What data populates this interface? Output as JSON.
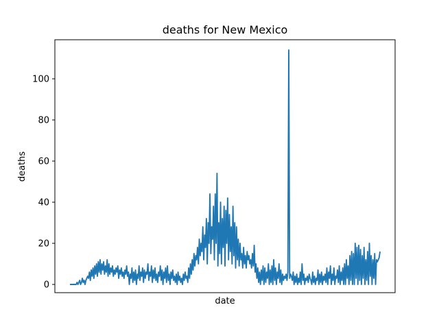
{
  "chart_data": {
    "type": "line",
    "title": "deaths for New Mexico",
    "xlabel": "date",
    "ylabel": "deaths",
    "ylim": [
      -4,
      119
    ],
    "yticks": [
      0,
      20,
      40,
      60,
      80,
      100
    ],
    "grid": false,
    "legend": "none",
    "colors": {
      "line": "#1f77b4"
    },
    "series": [
      {
        "values": [
          0,
          0,
          0,
          0,
          0,
          0,
          0,
          0,
          1,
          0,
          1,
          2,
          0,
          1,
          3,
          1,
          2,
          0,
          2,
          3,
          4,
          3,
          6,
          2,
          7,
          4,
          8,
          3,
          9,
          5,
          10,
          4,
          11,
          6,
          12,
          5,
          10,
          7,
          11,
          5,
          9,
          6,
          12,
          4,
          10,
          5,
          8,
          6,
          9,
          4,
          7,
          5,
          8,
          6,
          9,
          3,
          7,
          5,
          8,
          4,
          6,
          3,
          7,
          5,
          9,
          4,
          6,
          0,
          5,
          3,
          8,
          1,
          6,
          2,
          7,
          0,
          5,
          3,
          9,
          2,
          6,
          4,
          8,
          1,
          7,
          3,
          6,
          5,
          10,
          2,
          6,
          4,
          9,
          1,
          7,
          3,
          8,
          2,
          5,
          1,
          6,
          4,
          9,
          2,
          7,
          0,
          6,
          3,
          8,
          1,
          9,
          2,
          5,
          0,
          6,
          3,
          7,
          2,
          4,
          1,
          5,
          0,
          6,
          2,
          4,
          1,
          3,
          0,
          5,
          2,
          6,
          3,
          4,
          1,
          8,
          3,
          10,
          5,
          12,
          7,
          15,
          9,
          14,
          12,
          18,
          10,
          22,
          14,
          20,
          16,
          28,
          12,
          24,
          18,
          32,
          10,
          30,
          20,
          44,
          15,
          28,
          22,
          38,
          12,
          44,
          20,
          54,
          9,
          30,
          15,
          40,
          10,
          32,
          18,
          38,
          9,
          36,
          20,
          42,
          12,
          34,
          16,
          28,
          10,
          38,
          14,
          30,
          8,
          28,
          12,
          22,
          9,
          20,
          12,
          15,
          8,
          18,
          10,
          14,
          8,
          16,
          12,
          14,
          10,
          12,
          8,
          15,
          9,
          19,
          6,
          10,
          3,
          8,
          1,
          6,
          0,
          7,
          2,
          9,
          0,
          8,
          1,
          6,
          3,
          10,
          0,
          7,
          1,
          9,
          0,
          12,
          2,
          8,
          0,
          6,
          3,
          10,
          1,
          7,
          0,
          5,
          2,
          4,
          3,
          5,
          2,
          6,
          114,
          3,
          5,
          4,
          2,
          6,
          0,
          4,
          1,
          5,
          0,
          3,
          1,
          6,
          0,
          10,
          2,
          5,
          0,
          3,
          2,
          4,
          1,
          5,
          3,
          2,
          0,
          6,
          1,
          4,
          0,
          3,
          2,
          7,
          0,
          5,
          1,
          6,
          0,
          4,
          2,
          5,
          1,
          8,
          0,
          6,
          3,
          9,
          0,
          5,
          2,
          8,
          0,
          4,
          3,
          7,
          1,
          9,
          0,
          6,
          2,
          8,
          0,
          10,
          0,
          12,
          3,
          9,
          0,
          14,
          2,
          16,
          0,
          15,
          0,
          20,
          3,
          18,
          0,
          19,
          2,
          17,
          0,
          14,
          3,
          18,
          0,
          12,
          2,
          16,
          0,
          20,
          4,
          14,
          0,
          12,
          3,
          15,
          0,
          12,
          11,
          12,
          13,
          16
        ]
      }
    ]
  }
}
